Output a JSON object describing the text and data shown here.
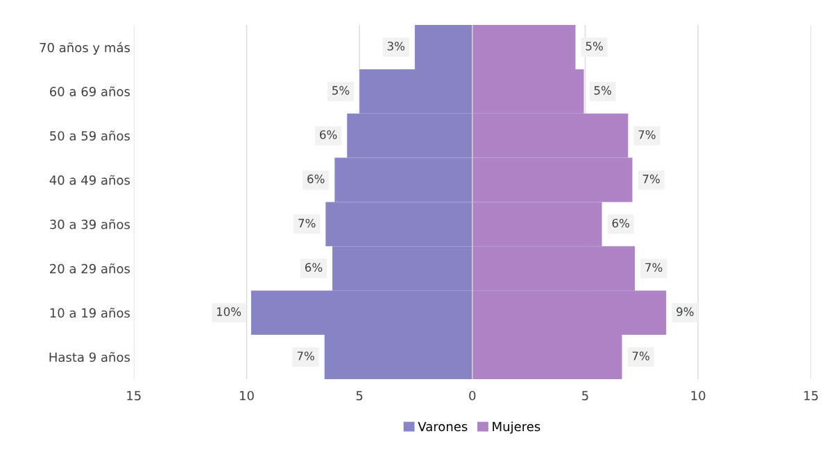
{
  "chart_data": [
    {
      "type": "bar",
      "orientation": "horizontal",
      "categories": [
        "70 años y más",
        "60 a 69 años",
        "50 a 59 años",
        "40 a 49 años",
        "30 a 39 años",
        "20 a 29 años",
        "10 a 19 años",
        "Hasta 9 años"
      ],
      "series": [
        {
          "name": "Varones",
          "color": "#8884c6",
          "values": [
            2.55,
            5.0,
            5.55,
            6.1,
            6.5,
            6.2,
            9.8,
            6.55
          ],
          "value_labels": [
            "3%",
            "5%",
            "6%",
            "6%",
            "7%",
            "6%",
            "10%",
            "7%"
          ]
        }
      ],
      "xlim": [
        15,
        0
      ],
      "xticks": [
        15,
        10,
        5,
        0
      ],
      "grid": "x",
      "legend": "bottom"
    },
    {
      "type": "bar",
      "orientation": "horizontal",
      "categories": [
        null,
        null,
        null,
        null,
        null,
        null,
        null,
        null
      ],
      "series": [
        {
          "name": "Mujeres",
          "color": "#ae84c6",
          "values": [
            4.57,
            4.94,
            6.9,
            7.09,
            5.74,
            7.2,
            8.59,
            6.63
          ],
          "value_labels": [
            "5%",
            "5%",
            "7%",
            "7%",
            "6%",
            "7%",
            "9%",
            "7%"
          ]
        }
      ],
      "xlim": [
        0,
        15
      ],
      "xticks": [
        {
          "value": 0,
          "label": null
        },
        5,
        10,
        15
      ],
      "grid": "x",
      "legend": "bottom",
      "tick_labels": "x"
    }
  ]
}
